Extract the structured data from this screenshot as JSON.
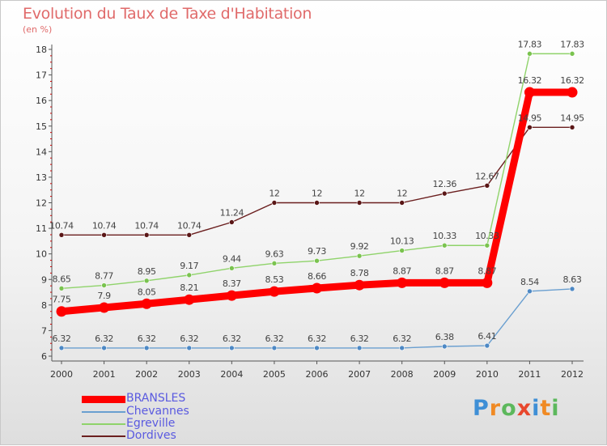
{
  "title": "Evolution du Taux de Taxe d'Habitation",
  "unit_label": "(en %)",
  "logo": {
    "text": "Proxiti",
    "letters": [
      "P",
      "r",
      "o",
      "x",
      "i",
      "t",
      "i"
    ],
    "colors": [
      "#3f8fd6",
      "#f08a24",
      "#5cb85c",
      "#e8472d",
      "#3f8fd6",
      "#f08a24",
      "#5cb85c"
    ]
  },
  "chart_data": {
    "type": "line",
    "title": "Evolution du Taux de Taxe d'Habitation",
    "ylabel": "(en %)",
    "xlabel": "",
    "x": [
      "2000",
      "2001",
      "2002",
      "2003",
      "2004",
      "2005",
      "2006",
      "2007",
      "2008",
      "2009",
      "2010",
      "2011",
      "2012"
    ],
    "yticks": [
      "6",
      "7",
      "8",
      "9",
      "10",
      "11",
      "12",
      "13",
      "14",
      "15",
      "16",
      "17",
      "18"
    ],
    "ylim": [
      6,
      18
    ],
    "grid": false,
    "legend": "bottom-left",
    "series": [
      {
        "name": "Dordives",
        "color": "#6b1f1f",
        "marker": "#5a1616",
        "values": [
          10.74,
          10.74,
          10.74,
          10.74,
          11.24,
          12,
          12,
          12,
          12,
          12.36,
          12.67,
          14.95,
          14.95
        ],
        "labels": [
          "10.74",
          "10.74",
          "10.74",
          "10.74",
          "11.24",
          "12",
          "12",
          "12",
          "12",
          "12.36",
          "12.67",
          "14.95",
          "14.95"
        ]
      },
      {
        "name": "Egreville",
        "color": "#8fd36a",
        "marker": "#7ac34f",
        "values": [
          8.65,
          8.77,
          8.95,
          9.17,
          9.44,
          9.63,
          9.73,
          9.92,
          10.13,
          10.33,
          10.33,
          17.83,
          17.83
        ],
        "labels": [
          "8.65",
          "8.77",
          "8.95",
          "9.17",
          "9.44",
          "9.63",
          "9.73",
          "9.92",
          "10.13",
          "10.33",
          "10.33",
          "17.83",
          "17.83"
        ]
      },
      {
        "name": "Chevannes",
        "color": "#6a9fd0",
        "marker": "#4d88c4",
        "values": [
          6.32,
          6.32,
          6.32,
          6.32,
          6.32,
          6.32,
          6.32,
          6.32,
          6.32,
          6.38,
          6.41,
          8.54,
          8.63
        ],
        "labels": [
          "6.32",
          "6.32",
          "6.32",
          "6.32",
          "6.32",
          "6.32",
          "6.32",
          "6.32",
          "6.32",
          "6.38",
          "6.41",
          "8.54",
          "8.63"
        ]
      },
      {
        "name": "BRANSLES",
        "color": "#ff0000",
        "marker": "#e00000",
        "values": [
          7.75,
          7.9,
          8.05,
          8.21,
          8.37,
          8.53,
          8.66,
          8.78,
          8.87,
          8.87,
          8.87,
          16.32,
          16.32
        ],
        "labels": [
          "7.75",
          "7.9",
          "8.05",
          "8.21",
          "8.37",
          "8.53",
          "8.66",
          "8.78",
          "8.87",
          "8.87",
          "8.87",
          "16.32",
          "16.32"
        ]
      }
    ],
    "legend_order": [
      "BRANSLES",
      "Chevannes",
      "Egreville",
      "Dordives"
    ]
  }
}
